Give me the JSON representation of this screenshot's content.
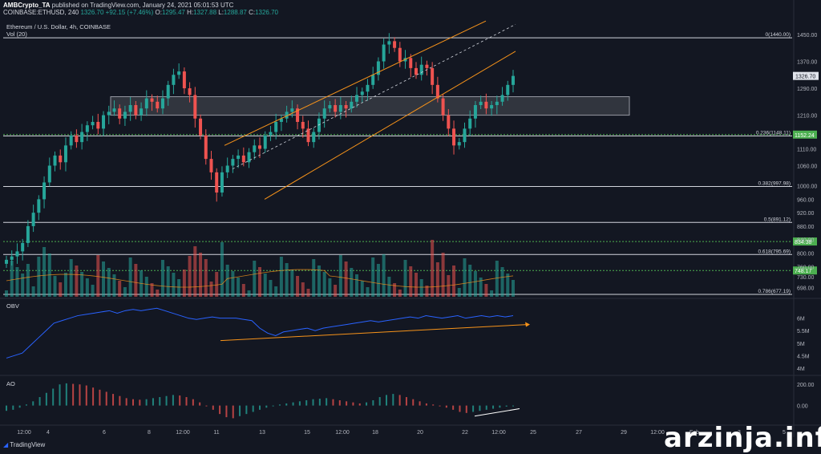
{
  "header": {
    "author": "AMBCrypto_TA",
    "published": "published on TradingView.com, January 24, 2021 05:01:53 UTC",
    "symbol": "COINBASE:ETHUSD, 240",
    "close": "1326.70",
    "change": "+92.15 (+7.46%)",
    "o_label": "O:",
    "o_value": "1295.47",
    "h_label": "H:",
    "h_value": "1327.88",
    "l_label": "L:",
    "l_value": "1288.87",
    "c_label": "C:",
    "c_value": "1326.70"
  },
  "legend": {
    "title": "Ethereum / U.S. Dollar, 4h, COINBASE",
    "volume": "Vol (20)"
  },
  "panes": {
    "obv_label": "OBV",
    "ao_label": "AO"
  },
  "footer": {
    "brand": "TradingView"
  },
  "watermark": "arzinja.info",
  "colors": {
    "bull": "#26a69a",
    "bear": "#ef5350",
    "channel": "#f7931a",
    "support": "#4caf50",
    "obv": "#2962ff",
    "background": "#131722"
  },
  "chart_data": {
    "type": "candlestick",
    "symbol": "ETHUSD",
    "timeframe": "4h",
    "price_axis": {
      "range": [
        670,
        1500
      ],
      "ticks": [
        "1450.00",
        "1370.00",
        "1290.00",
        "1210.00",
        "1110.00",
        "1060.00",
        "1000.00",
        "960.00",
        "920.00",
        "880.00",
        "840.00",
        "800.00",
        "760.00",
        "730.00",
        "698.00"
      ],
      "current_price": "1326.70"
    },
    "x_axis": {
      "labels": [
        "12:00",
        "4",
        "6",
        "8",
        "12:00",
        "11",
        "13",
        "15",
        "12:00",
        "18",
        "20",
        "22",
        "12:00",
        "25",
        "27",
        "29",
        "12:00",
        "Feb",
        "3",
        "5"
      ]
    },
    "fib_levels": [
      {
        "label": "0(1440.00)",
        "value": 1440.0
      },
      {
        "label": "0.236(1148.11)",
        "value": 1148.11
      },
      {
        "label": "0.382(997.98)",
        "value": 997.98
      },
      {
        "label": "0.5(891.12)",
        "value": 891.12
      },
      {
        "label": "0.618(795.69)",
        "value": 795.69
      },
      {
        "label": "0.786(677.19)",
        "value": 677.19
      }
    ],
    "support_levels": [
      {
        "label": "1152.24",
        "value": 1152.24
      },
      {
        "label": "834.38",
        "value": 834.38
      },
      {
        "label": "748.17",
        "value": 748.17
      }
    ],
    "resistance_zone": [
      1210,
      1265
    ],
    "closes": [
      780,
      790,
      805,
      830,
      880,
      920,
      960,
      1010,
      1060,
      1090,
      1070,
      1120,
      1150,
      1130,
      1160,
      1180,
      1190,
      1170,
      1210,
      1220,
      1230,
      1200,
      1220,
      1240,
      1210,
      1230,
      1260,
      1250,
      1230,
      1260,
      1300,
      1330,
      1340,
      1290,
      1270,
      1200,
      1150,
      1080,
      1040,
      980,
      1040,
      1060,
      1080,
      1090,
      1070,
      1100,
      1120,
      1110,
      1150,
      1160,
      1190,
      1200,
      1220,
      1230,
      1190,
      1170,
      1130,
      1160,
      1200,
      1230,
      1240,
      1220,
      1240,
      1230,
      1250,
      1270,
      1280,
      1300,
      1330,
      1370,
      1420,
      1430,
      1410,
      1370,
      1380,
      1350,
      1330,
      1360,
      1350,
      1300,
      1260,
      1210,
      1170,
      1120,
      1130,
      1170,
      1200,
      1240,
      1250,
      1230,
      1240,
      1250,
      1270,
      1300,
      1326.7
    ],
    "obv": {
      "ticks": [
        "6M",
        "5.5M",
        "5M",
        "4.5M",
        "4M"
      ],
      "values": [
        4.4,
        4.5,
        4.6,
        4.9,
        5.2,
        5.5,
        5.8,
        5.9,
        6.0,
        6.1,
        6.15,
        6.2,
        6.25,
        6.3,
        6.2,
        6.3,
        6.35,
        6.3,
        6.35,
        6.4,
        6.3,
        6.2,
        6.1,
        6.0,
        5.95,
        6.0,
        6.05,
        6.0,
        6.0,
        6.0,
        5.95,
        5.9,
        5.6,
        5.4,
        5.3,
        5.45,
        5.5,
        5.55,
        5.6,
        5.5,
        5.6,
        5.65,
        5.7,
        5.75,
        5.8,
        5.85,
        5.9,
        5.85,
        5.9,
        5.95,
        6.0,
        6.05,
        6.0,
        6.1,
        6.05,
        6.0,
        6.05,
        6.1,
        6.0,
        6.05,
        6.1,
        6.05,
        6.1,
        6.05,
        6.1
      ]
    },
    "ao": {
      "ticks": [
        "200.00",
        "0.00"
      ],
      "values": [
        -50,
        -40,
        -20,
        10,
        40,
        80,
        120,
        160,
        200,
        210,
        205,
        200,
        190,
        170,
        150,
        130,
        110,
        90,
        70,
        60,
        55,
        60,
        70,
        80,
        90,
        100,
        95,
        80,
        60,
        30,
        0,
        -40,
        -80,
        -110,
        -120,
        -100,
        -80,
        -60,
        -40,
        -20,
        0,
        10,
        20,
        30,
        40,
        50,
        60,
        65,
        70,
        60,
        50,
        40,
        30,
        20,
        30,
        50,
        80,
        100,
        110,
        100,
        80,
        60,
        40,
        20,
        10,
        0,
        -20,
        -40,
        -60,
        -70,
        -60,
        -50,
        -40,
        -30,
        -20,
        -10,
        -5
      ]
    }
  }
}
